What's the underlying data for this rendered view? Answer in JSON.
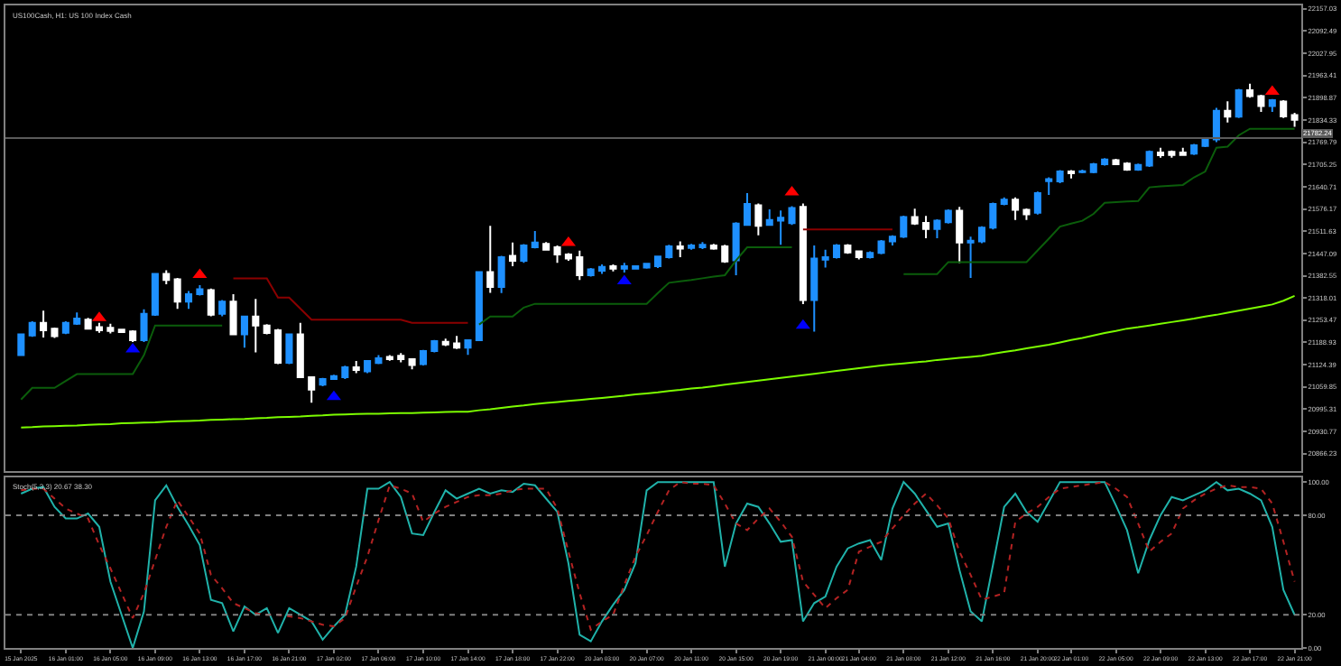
{
  "chart_data": [
    {
      "type": "candlestick",
      "title": "US100Cash, H1: US 100 Index Cash",
      "tick_labels": "y",
      "grid": false,
      "categories": [
        "15 Jan 2025",
        null,
        null,
        null,
        "16 Jan 01:00",
        null,
        null,
        null,
        "16 Jan 05:00",
        null,
        null,
        null,
        "16 Jan 09:00",
        null,
        null,
        null,
        "16 Jan 13:00",
        null,
        null,
        null,
        "16 Jan 17:00",
        null,
        null,
        null,
        "16 Jan 21:00",
        null,
        null,
        null,
        "17 Jan 02:00",
        null,
        null,
        null,
        "17 Jan 06:00",
        null,
        null,
        null,
        "17 Jan 10:00",
        null,
        null,
        null,
        "17 Jan 14:00",
        null,
        null,
        null,
        "17 Jan 18:00",
        null,
        null,
        null,
        "17 Jan 22:00",
        null,
        null,
        null,
        "20 Jan 03:00",
        null,
        null,
        null,
        "20 Jan 07:00",
        null,
        null,
        null,
        "20 Jan 11:00",
        null,
        null,
        null,
        "20 Jan 15:00",
        null,
        null,
        null,
        "20 Jan 19:00",
        null,
        null,
        null,
        "21 Jan 00:00",
        null,
        null,
        "21 Jan 04:00",
        null,
        null,
        null,
        "21 Jan 08:00",
        null,
        null,
        null,
        "21 Jan 12:00",
        null,
        null,
        null,
        "21 Jan 16:00",
        null,
        null,
        null,
        "21 Jan 20:00",
        null,
        null,
        "22 Jan 01:00",
        null,
        null,
        null,
        "22 Jan 05:00",
        null,
        null,
        null,
        "22 Jan 09:00",
        null,
        null,
        null,
        "22 Jan 13:00",
        null,
        null,
        null,
        "22 Jan 17:00",
        null,
        null,
        null,
        "22 Jan 21:00"
      ],
      "ohlc": [
        [
          21152,
          21215,
          21150,
          21212
        ],
        [
          21209,
          21250,
          21205,
          21246
        ],
        [
          21246,
          21281,
          21203,
          21224
        ],
        [
          21229,
          21232,
          21202,
          21207
        ],
        [
          21217,
          21250,
          21213,
          21246
        ],
        [
          21243,
          21276,
          21240,
          21258
        ],
        [
          21255,
          21260,
          21226,
          21229
        ],
        [
          21233,
          21246,
          21217,
          21224
        ],
        [
          21231,
          21243,
          21215,
          21222
        ],
        [
          21226,
          21229,
          21217,
          21219
        ],
        [
          21221,
          21224,
          21190,
          21195
        ],
        [
          21195,
          21285,
          21190,
          21272
        ],
        [
          21269,
          21390,
          21266,
          21388
        ],
        [
          21388,
          21398,
          21358,
          21370
        ],
        [
          21372,
          21376,
          21286,
          21307
        ],
        [
          21307,
          21338,
          21286,
          21329
        ],
        [
          21329,
          21355,
          21325,
          21343
        ],
        [
          21341,
          21345,
          21265,
          21269
        ],
        [
          21272,
          21312,
          21265,
          21307
        ],
        [
          21307,
          21329,
          21210,
          21212
        ],
        [
          21212,
          21266,
          21174,
          21264
        ],
        [
          21264,
          21315,
          21160,
          21238
        ],
        [
          21238,
          21242,
          21212,
          21216
        ],
        [
          21224,
          21228,
          21126,
          21130
        ],
        [
          21130,
          21215,
          21126,
          21212
        ],
        [
          21212,
          21246,
          21086,
          21088
        ],
        [
          21088,
          21090,
          21014,
          21052
        ],
        [
          21066,
          21086,
          21062,
          21083
        ],
        [
          21083,
          21095,
          21081,
          21091
        ],
        [
          21088,
          21121,
          21083,
          21117
        ],
        [
          21117,
          21135,
          21100,
          21109
        ],
        [
          21105,
          21138,
          21100,
          21135
        ],
        [
          21129,
          21152,
          21126,
          21143
        ],
        [
          21147,
          21152,
          21136,
          21140
        ],
        [
          21150,
          21158,
          21131,
          21140
        ],
        [
          21140,
          21142,
          21111,
          21123
        ],
        [
          21126,
          21167,
          21122,
          21164
        ],
        [
          21164,
          21196,
          21160,
          21193
        ],
        [
          21191,
          21200,
          21178,
          21183
        ],
        [
          21186,
          21208,
          21170,
          21174
        ],
        [
          21174,
          21198,
          21153,
          21195
        ],
        [
          21195,
          21395,
          21193,
          21393
        ],
        [
          21393,
          21527,
          21333,
          21350
        ],
        [
          21350,
          21440,
          21332,
          21436
        ],
        [
          21440,
          21479,
          21410,
          21426
        ],
        [
          21426,
          21474,
          21420,
          21470
        ],
        [
          21465,
          21512,
          21462,
          21479
        ],
        [
          21475,
          21480,
          21455,
          21458
        ],
        [
          21465,
          21470,
          21420,
          21444
        ],
        [
          21444,
          21448,
          21426,
          21432
        ],
        [
          21436,
          21455,
          21370,
          21384
        ],
        [
          21384,
          21405,
          21380,
          21401
        ],
        [
          21397,
          21415,
          21388,
          21408
        ],
        [
          21410,
          21415,
          21395,
          21403
        ],
        [
          21403,
          21420,
          21392,
          21410
        ],
        [
          21403,
          21413,
          21400,
          21410
        ],
        [
          21406,
          21420,
          21403,
          21417
        ],
        [
          21410,
          21441,
          21405,
          21438
        ],
        [
          21436,
          21472,
          21432,
          21468
        ],
        [
          21468,
          21482,
          21436,
          21461
        ],
        [
          21463,
          21475,
          21458,
          21470
        ],
        [
          21465,
          21480,
          21460,
          21472
        ],
        [
          21470,
          21475,
          21458,
          21461
        ],
        [
          21468,
          21472,
          21420,
          21424
        ],
        [
          21427,
          21538,
          21384,
          21534
        ],
        [
          21530,
          21622,
          21527,
          21591
        ],
        [
          21587,
          21592,
          21500,
          21527
        ],
        [
          21530,
          21575,
          21527,
          21544
        ],
        [
          21542,
          21572,
          21472,
          21551
        ],
        [
          21535,
          21584,
          21530,
          21579
        ],
        [
          21582,
          21592,
          21300,
          21312
        ],
        [
          21312,
          21470,
          21220,
          21432
        ],
        [
          21429,
          21458,
          21406,
          21436
        ],
        [
          21436,
          21474,
          21432,
          21470
        ],
        [
          21470,
          21474,
          21446,
          21450
        ],
        [
          21453,
          21455,
          21430,
          21436
        ],
        [
          21436,
          21453,
          21432,
          21449
        ],
        [
          21449,
          21486,
          21445,
          21482
        ],
        [
          21482,
          21500,
          21470,
          21496
        ],
        [
          21496,
          21557,
          21492,
          21553
        ],
        [
          21553,
          21577,
          21530,
          21534
        ],
        [
          21536,
          21556,
          21491,
          21518
        ],
        [
          21518,
          21546,
          21491,
          21542
        ],
        [
          21538,
          21575,
          21534,
          21571
        ],
        [
          21571,
          21582,
          21419,
          21479
        ],
        [
          21479,
          21496,
          21376,
          21484
        ],
        [
          21482,
          21526,
          21477,
          21522
        ],
        [
          21522,
          21595,
          21517,
          21591
        ],
        [
          21591,
          21610,
          21587,
          21603
        ],
        [
          21603,
          21610,
          21544,
          21574
        ],
        [
          21574,
          21578,
          21544,
          21561
        ],
        [
          21565,
          21627,
          21560,
          21622
        ],
        [
          21657,
          21668,
          21617,
          21663
        ],
        [
          21656,
          21689,
          21651,
          21685
        ],
        [
          21685,
          21689,
          21665,
          21680
        ],
        [
          21683,
          21690,
          21680,
          21686
        ],
        [
          21683,
          21710,
          21680,
          21706
        ],
        [
          21706,
          21724,
          21702,
          21720
        ],
        [
          21718,
          21722,
          21704,
          21706
        ],
        [
          21708,
          21712,
          21687,
          21690
        ],
        [
          21690,
          21708,
          21687,
          21704
        ],
        [
          21702,
          21746,
          21698,
          21742
        ],
        [
          21740,
          21754,
          21725,
          21732
        ],
        [
          21742,
          21746,
          21725,
          21733
        ],
        [
          21740,
          21754,
          21730,
          21733
        ],
        [
          21737,
          21765,
          21733,
          21761
        ],
        [
          21759,
          21784,
          21756,
          21780
        ],
        [
          21778,
          21870,
          21770,
          21861
        ],
        [
          21861,
          21889,
          21827,
          21844
        ],
        [
          21844,
          21925,
          21840,
          21921
        ],
        [
          21921,
          21940,
          21899,
          21904
        ],
        [
          21904,
          21908,
          21858,
          21875
        ],
        [
          21875,
          21895,
          21858,
          21892
        ],
        [
          21888,
          21892,
          21840,
          21845
        ],
        [
          21849,
          21855,
          21815,
          21835
        ]
      ],
      "colors": [
        "#1e90ff",
        "#1e90ff",
        "#ffffff",
        "#ffffff",
        "#1e90ff",
        "#1e90ff",
        "#ffffff",
        "#ffffff",
        "#ffffff",
        "#ffffff",
        "#ffffff",
        "#1e90ff",
        "#1e90ff",
        "#ffffff",
        "#ffffff",
        "#1e90ff",
        "#1e90ff",
        "#ffffff",
        "#1e90ff",
        "#ffffff",
        "#1e90ff",
        "#ffffff",
        "#ffffff",
        "#ffffff",
        "#1e90ff",
        "#ffffff",
        "#ffffff",
        "#1e90ff",
        "#1e90ff",
        "#1e90ff",
        "#ffffff",
        "#1e90ff",
        "#1e90ff",
        "#ffffff",
        "#ffffff",
        "#ffffff",
        "#1e90ff",
        "#1e90ff",
        "#ffffff",
        "#ffffff",
        "#1e90ff",
        "#1e90ff",
        "#ffffff",
        "#1e90ff",
        "#ffffff",
        "#1e90ff",
        "#1e90ff",
        "#ffffff",
        "#ffffff",
        "#ffffff",
        "#ffffff",
        "#1e90ff",
        "#1e90ff",
        "#ffffff",
        "#1e90ff",
        "#1e90ff",
        "#1e90ff",
        "#1e90ff",
        "#1e90ff",
        "#ffffff",
        "#1e90ff",
        "#1e90ff",
        "#ffffff",
        "#ffffff",
        "#1e90ff",
        "#1e90ff",
        "#ffffff",
        "#1e90ff",
        "#1e90ff",
        "#1e90ff",
        "#ffffff",
        "#1e90ff",
        "#1e90ff",
        "#1e90ff",
        "#ffffff",
        "#ffffff",
        "#1e90ff",
        "#1e90ff",
        "#1e90ff",
        "#1e90ff",
        "#ffffff",
        "#ffffff",
        "#1e90ff",
        "#1e90ff",
        "#ffffff",
        "#1e90ff",
        "#1e90ff",
        "#1e90ff",
        "#1e90ff",
        "#ffffff",
        "#ffffff",
        "#1e90ff",
        "#1e90ff",
        "#1e90ff",
        "#ffffff",
        "#1e90ff",
        "#1e90ff",
        "#1e90ff",
        "#ffffff",
        "#ffffff",
        "#1e90ff",
        "#1e90ff",
        "#ffffff",
        "#ffffff",
        "#ffffff",
        "#1e90ff",
        "#1e90ff",
        "#1e90ff",
        "#ffffff",
        "#1e90ff",
        "#ffffff",
        "#ffffff",
        "#1e90ff",
        "#ffffff",
        "#ffffff"
      ],
      "series": [
        {
          "type": "line",
          "color": "#7cfc00",
          "values": [
            20942,
            20943,
            20945,
            20946,
            20947,
            20948,
            20950,
            20951,
            20952,
            20954,
            20955,
            20956,
            20957,
            20959,
            20960,
            20961,
            20962,
            20964,
            20965,
            20966,
            20967,
            20969,
            20970,
            20972,
            20973,
            20974,
            20976,
            20977,
            20979,
            20980,
            20981,
            20982,
            20982,
            20983,
            20984,
            20984,
            20985,
            20986,
            20987,
            20988,
            20988,
            20992,
            20995,
            20999,
            21003,
            21006,
            21010,
            21013,
            21016,
            21019,
            21022,
            21025,
            21028,
            21031,
            21034,
            21038,
            21041,
            21044,
            21048,
            21051,
            21055,
            21058,
            21062,
            21066,
            21070,
            21074,
            21078,
            21082,
            21086,
            21090,
            21094,
            21098,
            21102,
            21106,
            21110,
            21114,
            21118,
            21122,
            21125,
            21128,
            21131,
            21134,
            21138,
            21141,
            21144,
            21147,
            21150,
            21156,
            21161,
            21166,
            21172,
            21177,
            21182,
            21189,
            21196,
            21202,
            21209,
            21216,
            21222,
            21229,
            21233,
            21238,
            21243,
            21248,
            21253,
            21258,
            21264,
            21269,
            21275,
            21281,
            21287,
            21293,
            21299,
            21310,
            21324
          ]
        },
        {
          "type": "line",
          "color": "#0b5d0b",
          "values": [
            21023,
            21057,
            21057,
            21057,
            21077,
            21097,
            21097,
            21097,
            21097,
            21097,
            21097,
            21152,
            21238,
            21238,
            21238,
            21238,
            21238,
            21238,
            21238,
            null,
            null,
            null,
            null,
            null,
            null,
            null,
            null,
            null,
            null,
            null,
            null,
            null,
            null,
            null,
            null,
            null,
            null,
            null,
            null,
            null,
            null,
            21241,
            21264,
            21264,
            21264,
            21290,
            21301,
            21301,
            21301,
            21301,
            21301,
            21301,
            21301,
            21301,
            21301,
            21301,
            21301,
            21332,
            21362,
            21366,
            21370,
            21375,
            21380,
            21384,
            21427,
            21465,
            21465,
            21465,
            21465,
            21465,
            null,
            null,
            null,
            null,
            null,
            null,
            null,
            null,
            null,
            21387,
            21387,
            21387,
            21387,
            21422,
            21422,
            21422,
            21422,
            21422,
            21422,
            21422,
            21422,
            21456,
            21490,
            21525,
            21534,
            21542,
            21562,
            21594,
            21596,
            21598,
            21599,
            21639,
            21642,
            21644,
            21646,
            21668,
            21685,
            21754,
            21757,
            21790,
            21809,
            21809,
            21809,
            21809,
            21809
          ]
        },
        {
          "type": "line",
          "color": "#8b0000",
          "values": [
            null,
            null,
            null,
            null,
            null,
            null,
            null,
            null,
            null,
            null,
            null,
            null,
            null,
            null,
            null,
            null,
            null,
            null,
            null,
            21375,
            21375,
            21375,
            21375,
            21319,
            21319,
            21287,
            21255,
            21255,
            21255,
            21255,
            21255,
            21255,
            21255,
            21255,
            21255,
            21246,
            21246,
            21246,
            21246,
            21246,
            21246,
            null,
            null,
            null,
            null,
            null,
            null,
            null,
            null,
            null,
            null,
            null,
            null,
            null,
            null,
            null,
            null,
            null,
            null,
            null,
            null,
            null,
            null,
            null,
            null,
            null,
            null,
            null,
            null,
            null,
            21517,
            21517,
            21517,
            21517,
            21517,
            21517,
            21517,
            21517,
            21517,
            null,
            null,
            null,
            null,
            null,
            null,
            null,
            null,
            null,
            null,
            null,
            null,
            null,
            null,
            null,
            null,
            null,
            null,
            null,
            null,
            null,
            null,
            null,
            null,
            null,
            null,
            null,
            null,
            null,
            null,
            null,
            null,
            null,
            null,
            null,
            null
          ]
        },
        {
          "type": "scatter",
          "marker": "triangle",
          "color": "#ff0000",
          "values": [
            null,
            null,
            null,
            null,
            null,
            null,
            null,
            21260,
            null,
            null,
            null,
            null,
            null,
            null,
            null,
            null,
            21385,
            null,
            null,
            null,
            null,
            null,
            null,
            null,
            null,
            null,
            null,
            null,
            null,
            null,
            null,
            null,
            null,
            null,
            null,
            null,
            null,
            null,
            null,
            null,
            null,
            null,
            null,
            null,
            null,
            null,
            null,
            null,
            null,
            21478,
            null,
            null,
            null,
            null,
            null,
            null,
            null,
            null,
            null,
            null,
            null,
            null,
            null,
            null,
            null,
            null,
            null,
            null,
            null,
            21625,
            null,
            null,
            null,
            null,
            null,
            null,
            null,
            null,
            null,
            null,
            null,
            null,
            null,
            null,
            null,
            null,
            null,
            null,
            null,
            null,
            null,
            null,
            null,
            null,
            null,
            null,
            null,
            null,
            null,
            null,
            null,
            null,
            null,
            null,
            null,
            null,
            null,
            null,
            null,
            null,
            null,
            null,
            21917,
            null,
            null
          ]
        },
        {
          "type": "scatter",
          "marker": "triangle",
          "color": "#0000ff",
          "values": [
            null,
            null,
            null,
            null,
            null,
            null,
            null,
            null,
            null,
            null,
            21169,
            null,
            null,
            null,
            null,
            null,
            null,
            null,
            null,
            null,
            null,
            null,
            null,
            null,
            null,
            null,
            null,
            null,
            21031,
            null,
            null,
            null,
            null,
            null,
            null,
            null,
            null,
            null,
            null,
            null,
            null,
            null,
            null,
            null,
            null,
            null,
            null,
            null,
            null,
            null,
            null,
            null,
            null,
            null,
            21367,
            null,
            null,
            null,
            null,
            null,
            null,
            null,
            null,
            null,
            null,
            null,
            null,
            null,
            null,
            null,
            21238,
            null,
            null,
            null,
            null,
            null,
            null,
            null,
            null,
            null,
            null,
            null,
            null,
            null,
            null,
            null,
            null,
            null,
            null,
            null,
            null,
            null,
            null,
            null,
            null,
            null,
            null,
            null,
            null,
            null,
            null,
            null,
            null,
            null,
            null,
            null,
            null,
            null,
            null,
            null,
            null,
            null,
            null,
            null,
            null
          ]
        }
      ],
      "ref_lines": [
        {
          "axis": "y",
          "value": 21782.24,
          "label": "21782.24",
          "color": "#5a5a5a"
        }
      ],
      "ylim": [
        20815,
        22167
      ],
      "yticks": [
        22157.03,
        22092.49,
        22027.95,
        21963.41,
        21898.87,
        21834.33,
        21769.79,
        21705.25,
        21640.71,
        21576.17,
        21511.63,
        21447.09,
        21382.55,
        21318.01,
        21253.47,
        21188.93,
        21124.39,
        21059.85,
        20995.31,
        20930.77,
        20866.23
      ]
    },
    {
      "type": "line",
      "title": "Stoch(5,3,3) 20.67 38.30",
      "grid": false,
      "series": [
        {
          "color": "#20b2aa",
          "line_style": "solid",
          "values": [
            93,
            96,
            97,
            85,
            78,
            78,
            81,
            73,
            40,
            20,
            0,
            22,
            89,
            98,
            85,
            74,
            62,
            29,
            27,
            10,
            25,
            20,
            24,
            9,
            24,
            20,
            16,
            5,
            13,
            20,
            49,
            96,
            96,
            100,
            91,
            69,
            68,
            82,
            95,
            90,
            93,
            96,
            93,
            95,
            94,
            99,
            98,
            90,
            82,
            51,
            8,
            4,
            16,
            26,
            35,
            51,
            95,
            100,
            100,
            100,
            100,
            100,
            100,
            49,
            75,
            87,
            85,
            75,
            64,
            65,
            16,
            27,
            31,
            49,
            60,
            63,
            65,
            53,
            84,
            100,
            93,
            83,
            73,
            75,
            47,
            22,
            16,
            50,
            85,
            93,
            82,
            76,
            88,
            100,
            100,
            100,
            100,
            100,
            86,
            71,
            45,
            65,
            80,
            91,
            89,
            92,
            95,
            100,
            95,
            96,
            93,
            89,
            73,
            35,
            20
          ]
        },
        {
          "color": "#b22222",
          "line_style": "dotted",
          "values": [
            95,
            96,
            96,
            90,
            84,
            81,
            78,
            62,
            48,
            33,
            18,
            33,
            53,
            73,
            89,
            79,
            69,
            44,
            36,
            27,
            24,
            21,
            20,
            20,
            19,
            18,
            16,
            14,
            13,
            18,
            37,
            55,
            77,
            98,
            96,
            93,
            76,
            81,
            85,
            88,
            91,
            92,
            92,
            93,
            95,
            96,
            96,
            96,
            84,
            58,
            33,
            11,
            16,
            20,
            38,
            55,
            68,
            82,
            95,
            100,
            99,
            99,
            98,
            87,
            75,
            71,
            78,
            84,
            76,
            67,
            40,
            32,
            24,
            30,
            35,
            58,
            61,
            64,
            72,
            80,
            87,
            93,
            86,
            78,
            58,
            44,
            29,
            31,
            33,
            76,
            81,
            85,
            91,
            96,
            97,
            98,
            99,
            100,
            96,
            91,
            75,
            58,
            64,
            69,
            84,
            89,
            93,
            96,
            98,
            97,
            97,
            96,
            87,
            64,
            40
          ]
        }
      ],
      "ref_lines": [
        {
          "axis": "y",
          "value": 80,
          "color": "#808080",
          "line_style": "dotted"
        },
        {
          "axis": "y",
          "value": 20,
          "color": "#808080",
          "line_style": "dotted"
        }
      ],
      "ylim": [
        0,
        103
      ],
      "yticks": [
        {
          "value": 100,
          "label": "100.00"
        },
        {
          "value": 80,
          "label": "80.00"
        },
        {
          "value": 20,
          "label": "20.00"
        },
        {
          "value": 0,
          "label": "0.00"
        }
      ]
    }
  ]
}
